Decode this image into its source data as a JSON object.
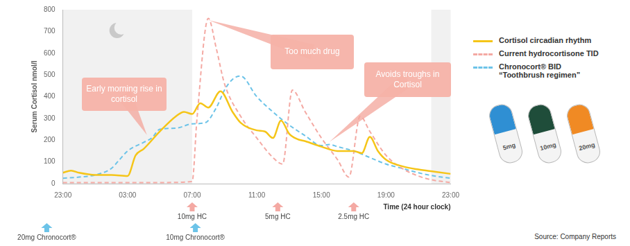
{
  "chart_data": {
    "type": "line",
    "y_label": "Serum Cortisol nmol/l",
    "x_label": "Time (24 hour clock)",
    "xlim": [
      0,
      24
    ],
    "xticks": [
      {
        "value": 0,
        "label": "23:00"
      },
      {
        "value": 4,
        "label": "03:00"
      },
      {
        "value": 8,
        "label": "07:00"
      },
      {
        "value": 12,
        "label": "11:00"
      },
      {
        "value": 16,
        "label": "15:00"
      },
      {
        "value": 20,
        "label": "19:00"
      },
      {
        "value": 24,
        "label": "23:00"
      }
    ],
    "ylim": [
      0,
      800
    ],
    "yticks": [
      0,
      100,
      200,
      300,
      400,
      500,
      600,
      700,
      800
    ],
    "grid": false,
    "legend": "right",
    "night_x": [
      [
        0,
        8
      ],
      [
        22.8,
        24
      ]
    ],
    "series": [
      {
        "name": "Cortisol circadian rhythm",
        "color": "#f5c518",
        "line_style": "solid",
        "marker": "none",
        "x": [
          0,
          0.5,
          1,
          2,
          3,
          4,
          4.5,
          5,
          6,
          7,
          7.5,
          8,
          8.5,
          9,
          9.75,
          10.5,
          11,
          12,
          12.5,
          13,
          13.5,
          14,
          14.5,
          15,
          16,
          17,
          18,
          18.5,
          19,
          19.5,
          20,
          21,
          22,
          23,
          24
        ],
        "values": [
          50,
          60,
          50,
          40,
          40,
          35,
          130,
          160,
          240,
          310,
          330,
          320,
          370,
          350,
          425,
          330,
          280,
          245,
          240,
          210,
          290,
          230,
          205,
          195,
          170,
          150,
          150,
          140,
          215,
          150,
          110,
          80,
          65,
          55,
          45
        ]
      },
      {
        "name": "Current hydrocortisone TID",
        "color": "#f4a9a3",
        "line_style": "dashed",
        "marker": "none",
        "x": [
          0,
          2,
          4,
          6,
          8,
          8.3,
          9,
          9.5,
          10,
          11,
          12,
          13,
          13.6,
          14.2,
          15,
          16,
          17,
          17.7,
          18.4,
          19,
          20,
          21,
          22,
          23,
          24
        ],
        "values": [
          5,
          5,
          5,
          5,
          10,
          300,
          760,
          620,
          460,
          310,
          210,
          120,
          90,
          430,
          330,
          210,
          110,
          30,
          310,
          240,
          130,
          70,
          35,
          15,
          5
        ]
      },
      {
        "name": "Chronocort® BID “Toothbrush regimen”",
        "color": "#6cc3e8",
        "line_style": "dashed",
        "marker": "none",
        "x": [
          0,
          1,
          2,
          3,
          3.5,
          4,
          5,
          5.5,
          6,
          7,
          8,
          8.8,
          9.5,
          10,
          10.5,
          11,
          12,
          13,
          14,
          15,
          16,
          16.5,
          17,
          18,
          19,
          20,
          21,
          22,
          23,
          24
        ],
        "values": [
          25,
          30,
          40,
          70,
          110,
          150,
          190,
          210,
          250,
          255,
          275,
          280,
          350,
          430,
          480,
          495,
          400,
          330,
          270,
          220,
          175,
          180,
          170,
          150,
          120,
          90,
          70,
          50,
          35,
          25
        ]
      }
    ],
    "annotations": [
      {
        "text": "Early morning rise in cortisol",
        "x": 5.2,
        "y": 224
      },
      {
        "text": "Too much drug",
        "x": 9.0,
        "y": 752
      },
      {
        "text": "Avoids troughs in Cortisol",
        "x": 16.5,
        "y": 192
      }
    ],
    "doses": [
      {
        "label": "10mg HC",
        "x": 8,
        "series": "Current hydrocortisone TID"
      },
      {
        "label": "5mg HC",
        "x": 13.3,
        "series": "Current hydrocortisone TID"
      },
      {
        "label": "2.5mg HC",
        "x": 18,
        "series": "Current hydrocortisone TID"
      },
      {
        "label": "20mg Chronocort®",
        "x": -1,
        "series": "Chronocort® BID “Toothbrush regimen”"
      },
      {
        "label": "10mg Chronocort®",
        "x": 8.2,
        "series": "Chronocort® BID “Toothbrush regimen”"
      }
    ],
    "source": "Source: Company Reports"
  },
  "capsules": [
    {
      "label": "5mg",
      "color": "#2f8fd3"
    },
    {
      "label": "10mg",
      "color": "#1f4d3a"
    },
    {
      "label": "20mg",
      "color": "#f08a24"
    }
  ]
}
